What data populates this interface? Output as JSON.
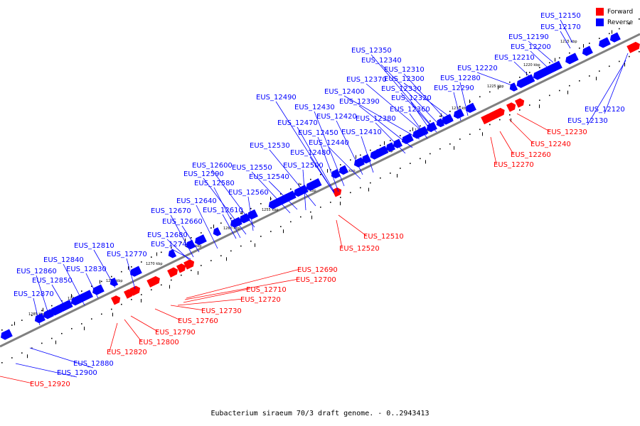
{
  "caption": "Eubacterium siraeum 70/3 draft genome. - 0..2943413",
  "legend": [
    {
      "label": "Forward",
      "color": "#ff0000"
    },
    {
      "label": "Reverse",
      "color": "#0000ff"
    }
  ],
  "colors": {
    "forward": "#ff0000",
    "reverse": "#0000ff",
    "axis": "#808080"
  },
  "ticks": [
    "1215 kbp",
    "1220 kbp",
    "1225 kbp",
    "1230 kbp",
    "1235 kbp",
    "1240 kbp",
    "1245 kbp",
    "1250 kbp",
    "1255 kbp",
    "1260 kbp",
    "1265 kbp",
    "1270 kbp",
    "1275 kbp",
    "1280 kbp",
    "1285 kbp"
  ],
  "reverse_labels": [
    "EUS_12150",
    "EUS_12170",
    "EUS_12190",
    "EUS_12200",
    "EUS_12210",
    "EUS_12220",
    "EUS_12350",
    "EUS_12340",
    "EUS_12310",
    "EUS_12300",
    "EUS_12370",
    "EUS_12280",
    "EUS_12290",
    "EUS_12330",
    "EUS_12400",
    "EUS_12320",
    "EUS_12390",
    "EUS_12360",
    "EUS_12490",
    "EUS_12430",
    "EUS_12420",
    "EUS_12380",
    "EUS_12470",
    "EUS_12450",
    "EUS_12410",
    "EUS_12440",
    "EUS_12530",
    "EUS_12480",
    "EUS_12500",
    "EUS_12600",
    "EUS_12550",
    "EUS_12590",
    "EUS_12540",
    "EUS_12580",
    "EUS_12560",
    "EUS_12640",
    "EUS_12610",
    "EUS_12670",
    "EUS_12660",
    "EUS_12680",
    "EUS_12740",
    "EUS_12810",
    "EUS_12770",
    "EUS_12840",
    "EUS_12830",
    "EUS_12860",
    "EUS_12850",
    "EUS_12870",
    "EUS_12120",
    "EUS_12130",
    "EUS_12880",
    "EUS_12900"
  ],
  "forward_labels": [
    "EUS_12230",
    "EUS_12240",
    "EUS_12260",
    "EUS_12270",
    "EUS_12510",
    "EUS_12520",
    "EUS_12690",
    "EUS_12700",
    "EUS_12710",
    "EUS_12720",
    "EUS_12730",
    "EUS_12760",
    "EUS_12790",
    "EUS_12800",
    "EUS_12820",
    "EUS_12920"
  ]
}
